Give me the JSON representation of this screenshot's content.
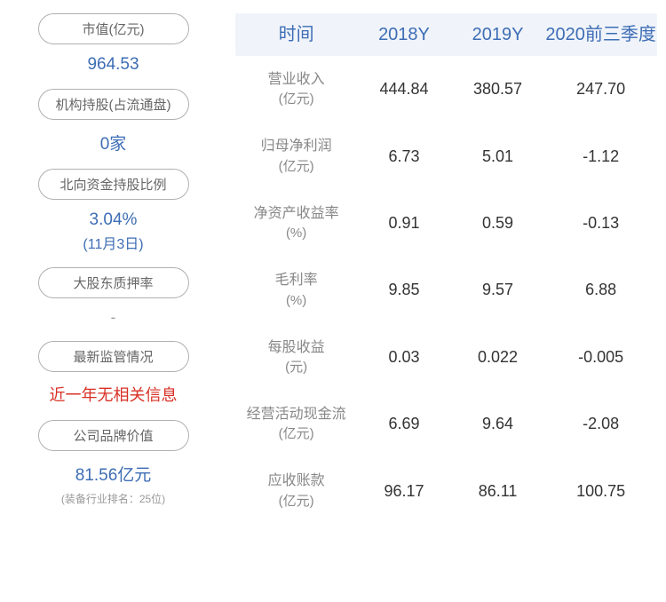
{
  "left": {
    "metrics": [
      {
        "label": "市值(亿元)",
        "value": "964.53",
        "type": "normal"
      },
      {
        "label": "机构持股(占流通盘)",
        "value": "0家",
        "type": "normal"
      },
      {
        "label": "北向资金持股比例",
        "value": "3.04%",
        "subline": "(11月3日)",
        "type": "normal"
      },
      {
        "label": "大股东质押率",
        "value": "-",
        "type": "dash"
      },
      {
        "label": "最新监管情况",
        "value": "近一年无相关信息",
        "type": "red"
      },
      {
        "label": "公司品牌价值",
        "value": "81.56亿元",
        "type": "normal",
        "note": "(装备行业排名：25位)"
      }
    ]
  },
  "table": {
    "headers": [
      "时间",
      "2018Y",
      "2019Y",
      "2020前三季度"
    ],
    "rows": [
      {
        "label": "营业收入",
        "unit": "(亿元)",
        "values": [
          "444.84",
          "380.57",
          "247.70"
        ]
      },
      {
        "label": "归母净利润",
        "unit": "(亿元)",
        "values": [
          "6.73",
          "5.01",
          "-1.12"
        ]
      },
      {
        "label": "净资产收益率",
        "unit": "(%)",
        "values": [
          "0.91",
          "0.59",
          "-0.13"
        ]
      },
      {
        "label": "毛利率",
        "unit": "(%)",
        "values": [
          "9.85",
          "9.57",
          "6.88"
        ]
      },
      {
        "label": "每股收益",
        "unit": "(元)",
        "values": [
          "0.03",
          "0.022",
          "-0.005"
        ]
      },
      {
        "label": "经营活动现金流",
        "unit": "(亿元)",
        "values": [
          "6.69",
          "9.64",
          "-2.08"
        ]
      },
      {
        "label": "应收账款",
        "unit": "(亿元)",
        "values": [
          "96.17",
          "86.11",
          "100.75"
        ]
      }
    ]
  }
}
